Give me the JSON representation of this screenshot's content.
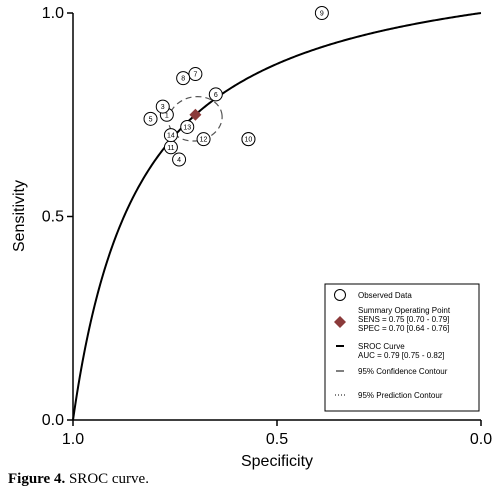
{
  "chart_data": {
    "type": "scatter",
    "title": "",
    "xlabel": "Specificity",
    "ylabel": "Sensitivity",
    "xlim": [
      1.0,
      0.0
    ],
    "ylim": [
      0.0,
      1.0
    ],
    "x_reversed": true,
    "x_ticks": [
      {
        "value": 1.0,
        "label": "1.0"
      },
      {
        "value": 0.5,
        "label": "0.5"
      },
      {
        "value": 0.0,
        "label": "0.0"
      }
    ],
    "y_ticks": [
      {
        "value": 0.0,
        "label": "0.0"
      },
      {
        "value": 0.5,
        "label": "0.5"
      },
      {
        "value": 1.0,
        "label": "1.0"
      }
    ],
    "grid": false,
    "studies": [
      {
        "label": "1",
        "specificity": 0.77,
        "sensitivity": 0.75
      },
      {
        "label": "2",
        "specificity": 0.57,
        "sensitivity": 0.69
      },
      {
        "label": "3",
        "specificity": 0.78,
        "sensitivity": 0.77
      },
      {
        "label": "4",
        "specificity": 0.74,
        "sensitivity": 0.64
      },
      {
        "label": "5",
        "specificity": 0.81,
        "sensitivity": 0.74
      },
      {
        "label": "6",
        "specificity": 0.65,
        "sensitivity": 0.8
      },
      {
        "label": "7",
        "specificity": 0.7,
        "sensitivity": 0.85
      },
      {
        "label": "8",
        "specificity": 0.73,
        "sensitivity": 0.84
      },
      {
        "label": "9",
        "specificity": 0.39,
        "sensitivity": 1.0
      },
      {
        "label": "10",
        "specificity": 0.57,
        "sensitivity": 0.69
      },
      {
        "label": "11",
        "specificity": 0.76,
        "sensitivity": 0.67
      },
      {
        "label": "12",
        "specificity": 0.68,
        "sensitivity": 0.69
      },
      {
        "label": "13",
        "specificity": 0.72,
        "sensitivity": 0.72
      },
      {
        "label": "14",
        "specificity": 0.76,
        "sensitivity": 0.7
      }
    ],
    "summary_point": {
      "specificity": 0.7,
      "sensitivity": 0.75
    },
    "confidence_contour": {
      "center_specificity": 0.7,
      "center_sensitivity": 0.74,
      "spec_range": [
        0.64,
        0.76
      ],
      "sens_range": [
        0.7,
        0.79
      ]
    },
    "sroc_curve": {
      "auc": 0.79
    },
    "legend": {
      "position": "bottom-right",
      "items": [
        {
          "type": "circle",
          "lines": [
            "Observed Data"
          ]
        },
        {
          "type": "diamond",
          "lines": [
            "Summary Operating Point",
            "SENS = 0.75 [0.70 - 0.79]",
            "SPEC = 0.70 [0.64 - 0.76]"
          ]
        },
        {
          "type": "thick-line",
          "lines": [
            "SROC Curve",
            "AUC = 0.79 [0.75 - 0.82]"
          ]
        },
        {
          "type": "dash-line",
          "lines": [
            "95% Confidence Contour"
          ]
        },
        {
          "type": "dot-line",
          "lines": [
            "95% Prediction Contour"
          ]
        }
      ]
    },
    "colors": {
      "summary_point": "#8b3a3a",
      "curve": "#000000"
    }
  },
  "caption": {
    "prefix": "Figure 4.",
    "text": " SROC curve."
  }
}
